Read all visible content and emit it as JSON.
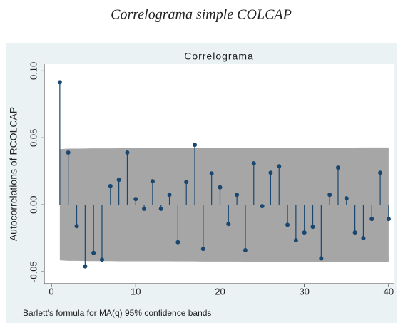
{
  "chart_data": {
    "type": "stem",
    "title": "Correlograma simple COLCAP",
    "subtitle": "Correlograma",
    "y_label": "Autocorrelations of RCOLCAP",
    "note": "Barlett's formula for MA(q) 95% confidence bands",
    "x": [
      1,
      2,
      3,
      4,
      5,
      6,
      7,
      8,
      9,
      10,
      11,
      12,
      13,
      14,
      15,
      16,
      17,
      18,
      19,
      20,
      21,
      22,
      23,
      24,
      25,
      26,
      27,
      28,
      29,
      30,
      31,
      32,
      33,
      34,
      35,
      36,
      37,
      38,
      39,
      40
    ],
    "values": [
      0.0915,
      0.039,
      -0.016,
      -0.046,
      -0.036,
      -0.041,
      0.014,
      0.0186,
      0.039,
      0.0043,
      -0.003,
      0.0176,
      -0.003,
      0.0074,
      -0.028,
      0.017,
      0.0447,
      -0.033,
      0.0234,
      0.013,
      -0.0144,
      0.0074,
      -0.034,
      0.0309,
      -0.001,
      0.0239,
      0.0287,
      -0.015,
      -0.0266,
      -0.0207,
      -0.0165,
      -0.04,
      0.0074,
      0.0277,
      0.0048,
      -0.0207,
      -0.025,
      -0.0106,
      0.0239,
      -0.0106
    ],
    "ci": [
      0.0415,
      0.0419,
      0.0419,
      0.042,
      0.0421,
      0.0421,
      0.0421,
      0.0422,
      0.0422,
      0.0422,
      0.0422,
      0.0422,
      0.0422,
      0.0422,
      0.0423,
      0.0423,
      0.0423,
      0.0424,
      0.0424,
      0.0424,
      0.0424,
      0.0424,
      0.0425,
      0.0425,
      0.0425,
      0.0425,
      0.0426,
      0.0426,
      0.0426,
      0.0426,
      0.0426,
      0.0427,
      0.0427,
      0.0427,
      0.0427,
      0.0427,
      0.0428,
      0.0428,
      0.0428,
      0.0428
    ],
    "color": "#1a476f",
    "band_color": "#a6a6a6",
    "xlim": [
      -0.85,
      40.6
    ],
    "ylim": [
      -0.059,
      0.105
    ],
    "xticks": [
      0,
      10,
      20,
      30,
      40
    ],
    "yticks": [
      {
        "value": -0.05,
        "label": "-0.05"
      },
      {
        "value": 0,
        "label": "0.00"
      },
      {
        "value": 0.05,
        "label": "0.05"
      },
      {
        "value": 0.1,
        "label": "0.10"
      }
    ]
  }
}
